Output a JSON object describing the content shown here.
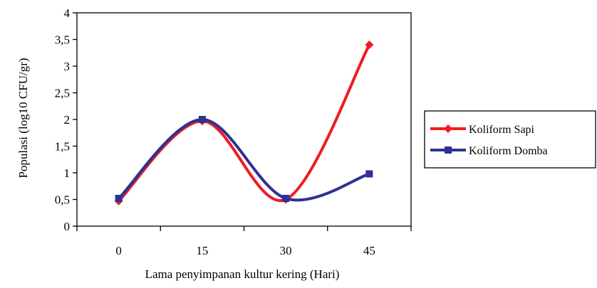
{
  "chart_data": {
    "type": "line",
    "xlabel": "Lama penyimpanan kultur kering (Hari)",
    "ylabel": "Populasi (log10 CFU/gr)",
    "categories": [
      "0",
      "15",
      "30",
      "45"
    ],
    "ylim": [
      0,
      4
    ],
    "yticks": [
      "0",
      "0,5",
      "1",
      "1,5",
      "2",
      "2,5",
      "3",
      "3,5",
      "4"
    ],
    "grid": false,
    "legend_position": "right",
    "series": [
      {
        "name": "Koliform Sapi",
        "values": [
          0.47,
          1.97,
          0.5,
          3.4
        ],
        "color": "#ee1c24",
        "marker": "diamond"
      },
      {
        "name": "Koliform Domba",
        "values": [
          0.52,
          2.0,
          0.52,
          0.98
        ],
        "color": "#2e3192",
        "marker": "square"
      }
    ]
  }
}
